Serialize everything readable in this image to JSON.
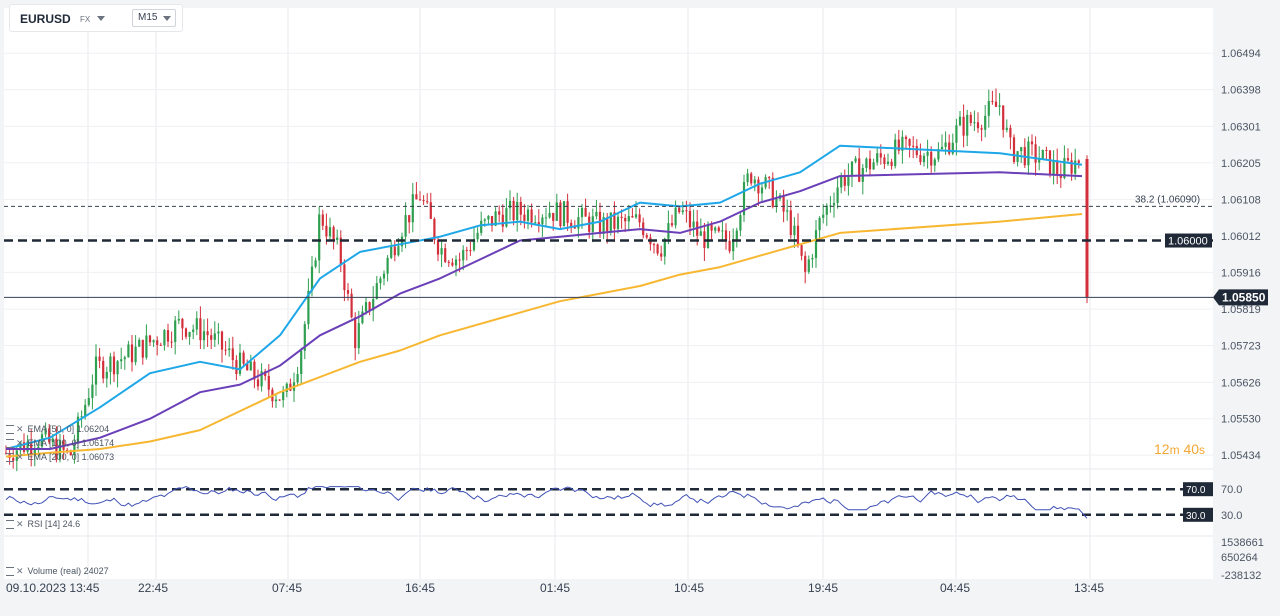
{
  "header": {
    "symbol": "EURUSD",
    "type": "FX",
    "timeframe": "M15"
  },
  "price_axis": [
    "1.06494",
    "1.06398",
    "1.06301",
    "1.06205",
    "1.06108",
    "1.06012",
    "1.05916",
    "1.05819",
    "1.05723",
    "1.05626",
    "1.05530",
    "1.05434"
  ],
  "time_axis": [
    "09.10.2023  13:45",
    "22:45",
    "07:45",
    "16:45",
    "01:45",
    "10:45",
    "19:45",
    "04:45",
    "13:45"
  ],
  "levels": {
    "fib_label": "38.2 (1.06090)",
    "level_label": "1.06000",
    "current_price": "1.05850"
  },
  "indicators": {
    "ema50": {
      "name": "EMA [50, 0]",
      "value": "1.06204"
    },
    "ema100": {
      "name": "EMA [100, 0]",
      "value": "1.06174"
    },
    "ema200": {
      "name": "EMA [200, 0]",
      "value": "1.06073"
    },
    "rsi": {
      "name": "RSI [14]",
      "value": "24.6",
      "upper": "70.0",
      "lower": "30.0",
      "upper_axis": "70.0",
      "lower_axis": "30.0"
    },
    "volume": {
      "name": "Volume  (real)",
      "value": "24027",
      "axis": [
        "1538661",
        "650264",
        "-238132"
      ]
    }
  },
  "countdown": {
    "minutes": "12",
    "m_unit": "m",
    "seconds": "40",
    "s_unit": "s"
  },
  "colors": {
    "ema50": "#1ea7e8",
    "ema100": "#6a3fb8",
    "ema200": "#f7b731",
    "up": "#2e9e4f",
    "down": "#d32f3a",
    "rsi": "#3f51b5"
  },
  "chart_data": {
    "type": "candlestick",
    "symbol": "EURUSD",
    "timeframe": "M15",
    "ylim": [
      1.054,
      1.0655
    ],
    "series": [
      {
        "name": "EMA [50, 0]",
        "values": [
          1.0545,
          1.0548,
          1.0556,
          1.0565,
          1.0568,
          1.0566,
          1.0575,
          1.059,
          1.0597,
          1.0599,
          1.0601,
          1.0604,
          1.0605,
          1.0603,
          1.0605,
          1.061,
          1.0609,
          1.061,
          1.0615,
          1.0618,
          1.0625,
          1.0623,
          1.062
        ]
      },
      {
        "name": "EMA [100, 0]",
        "values": [
          1.0545,
          1.0545,
          1.0548,
          1.0553,
          1.056,
          1.0562,
          1.0567,
          1.0575,
          1.058,
          1.0586,
          1.059,
          1.0595,
          1.06,
          1.0601,
          1.0602,
          1.0603,
          1.0602,
          1.0605,
          1.061,
          1.0613,
          1.0617,
          1.0618,
          1.0617
        ]
      },
      {
        "name": "EMA [200, 0]",
        "values": [
          1.0543,
          1.0544,
          1.0545,
          1.0547,
          1.055,
          1.0555,
          1.056,
          1.0564,
          1.0568,
          1.0571,
          1.0575,
          1.0578,
          1.0581,
          1.0584,
          1.0586,
          1.0588,
          1.0591,
          1.0593,
          1.0596,
          1.0599,
          1.0602,
          1.0605,
          1.0607
        ]
      }
    ],
    "last_price": 1.0585,
    "rsi_last": 24.6
  }
}
